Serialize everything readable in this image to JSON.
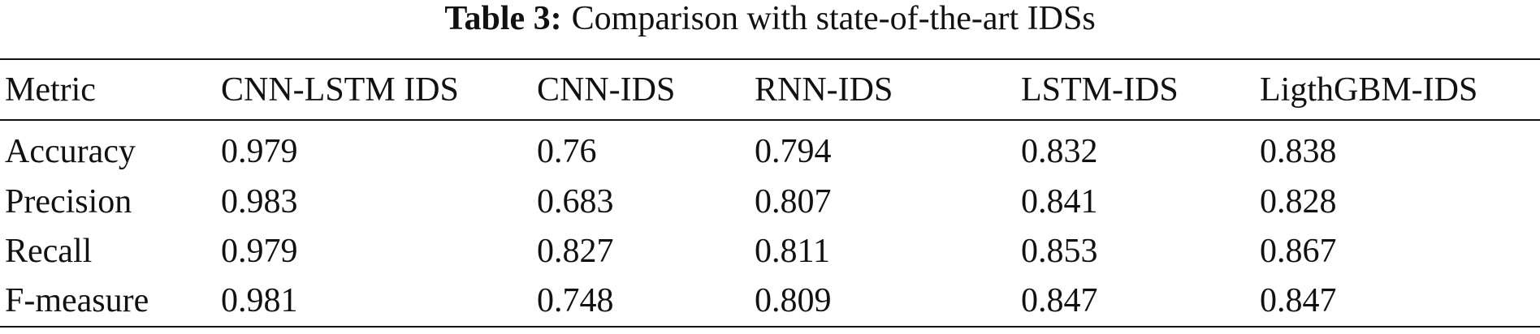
{
  "caption": {
    "label": "Table 3:",
    "text": "Comparison with state-of-the-art IDSs"
  },
  "table": {
    "header": [
      "Metric",
      "CNN-LSTM IDS",
      "CNN-IDS",
      "RNN-IDS",
      "LSTM-IDS",
      "LigthGBM-IDS"
    ],
    "rows": [
      [
        "Accuracy",
        "0.979",
        "0.76",
        "0.794",
        "0.832",
        "0.838"
      ],
      [
        "Precision",
        "0.983",
        "0.683",
        "0.807",
        "0.841",
        "0.828"
      ],
      [
        "Recall",
        "0.979",
        "0.827",
        "0.811",
        "0.853",
        "0.867"
      ],
      [
        "F-measure",
        "0.981",
        "0.748",
        "0.809",
        "0.847",
        "0.847"
      ]
    ]
  }
}
